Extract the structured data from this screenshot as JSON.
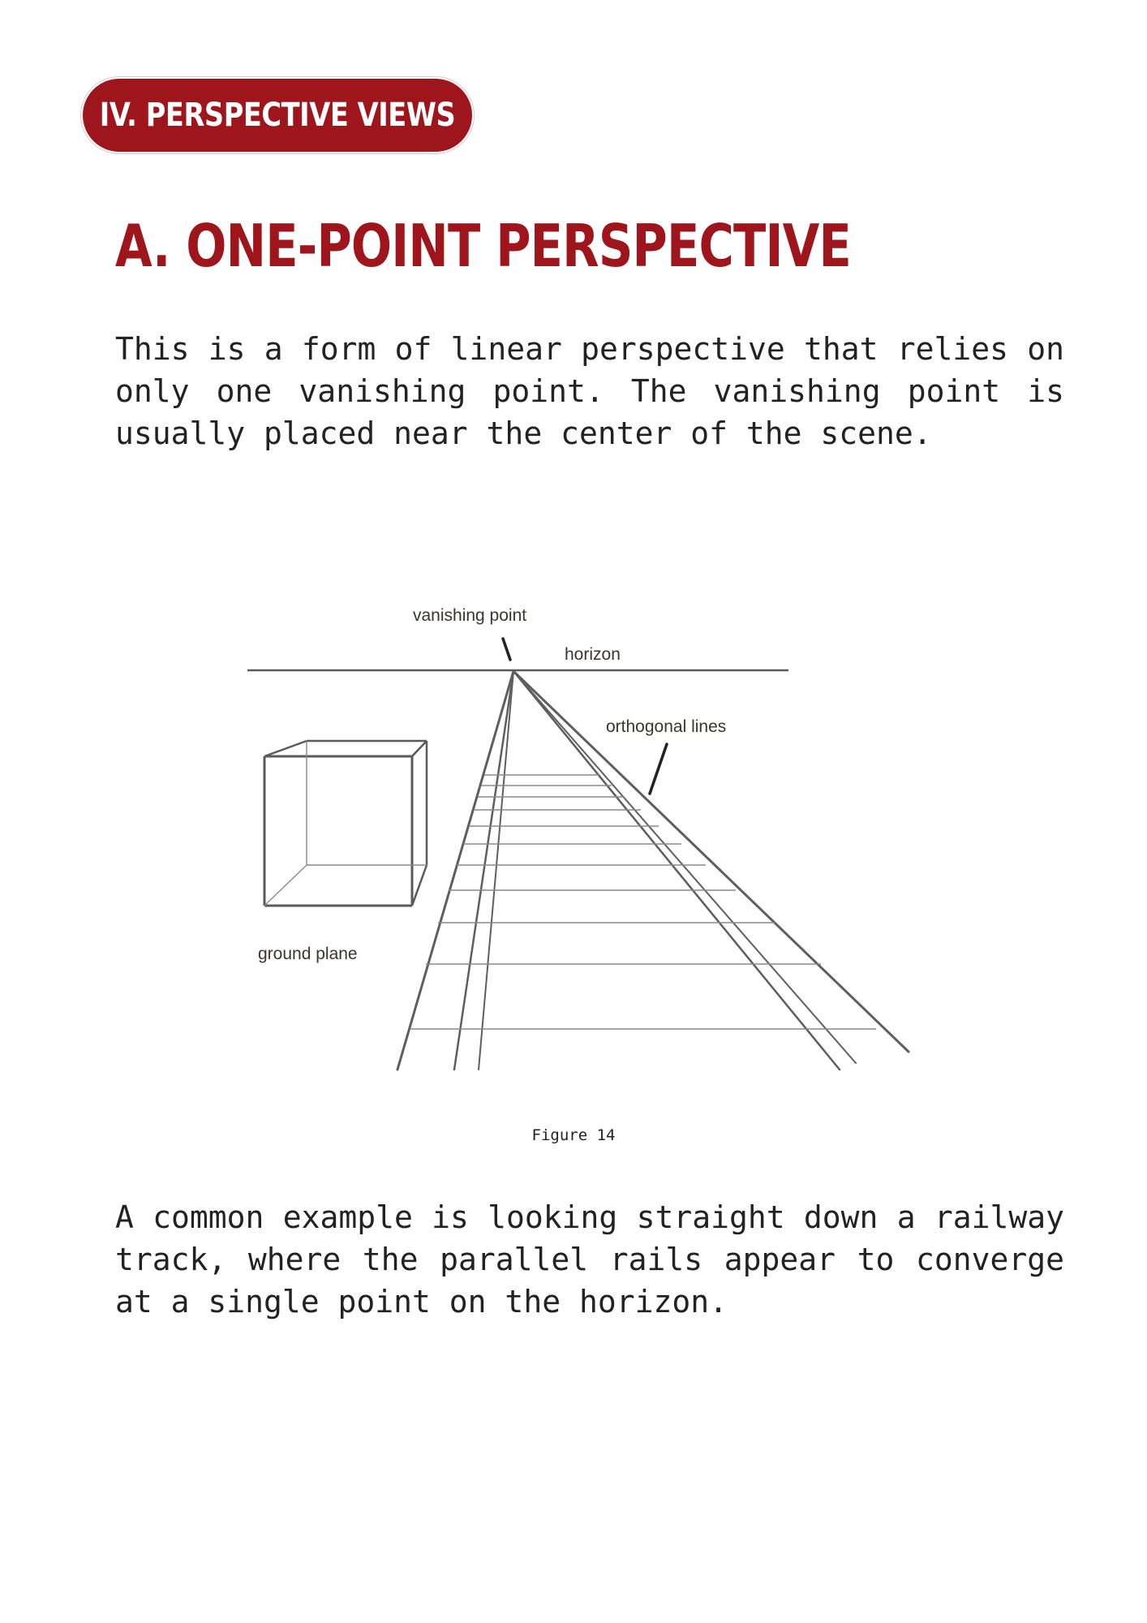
{
  "section": {
    "label": "IV. PERSPECTIVE VIEWS"
  },
  "heading": "A. ONE-POINT PERSPECTIVE",
  "intro_text": "This is a form of linear perspective that relies on only one vanishing point. The vanishing point is usually placed near the center of the scene.",
  "figure": {
    "labels": {
      "vanishing_point": "vanishing point",
      "horizon": "horizon",
      "orthogonal_lines": "orthogonal lines",
      "ground_plane": "ground plane"
    },
    "caption": "Figure 14"
  },
  "example_text": "A common example is looking straight down a railway track, where the parallel rails appear to converge at a single point on the horizon.",
  "colors": {
    "accent": "#9e151c",
    "text": "#222222",
    "sketch": "#555555"
  }
}
